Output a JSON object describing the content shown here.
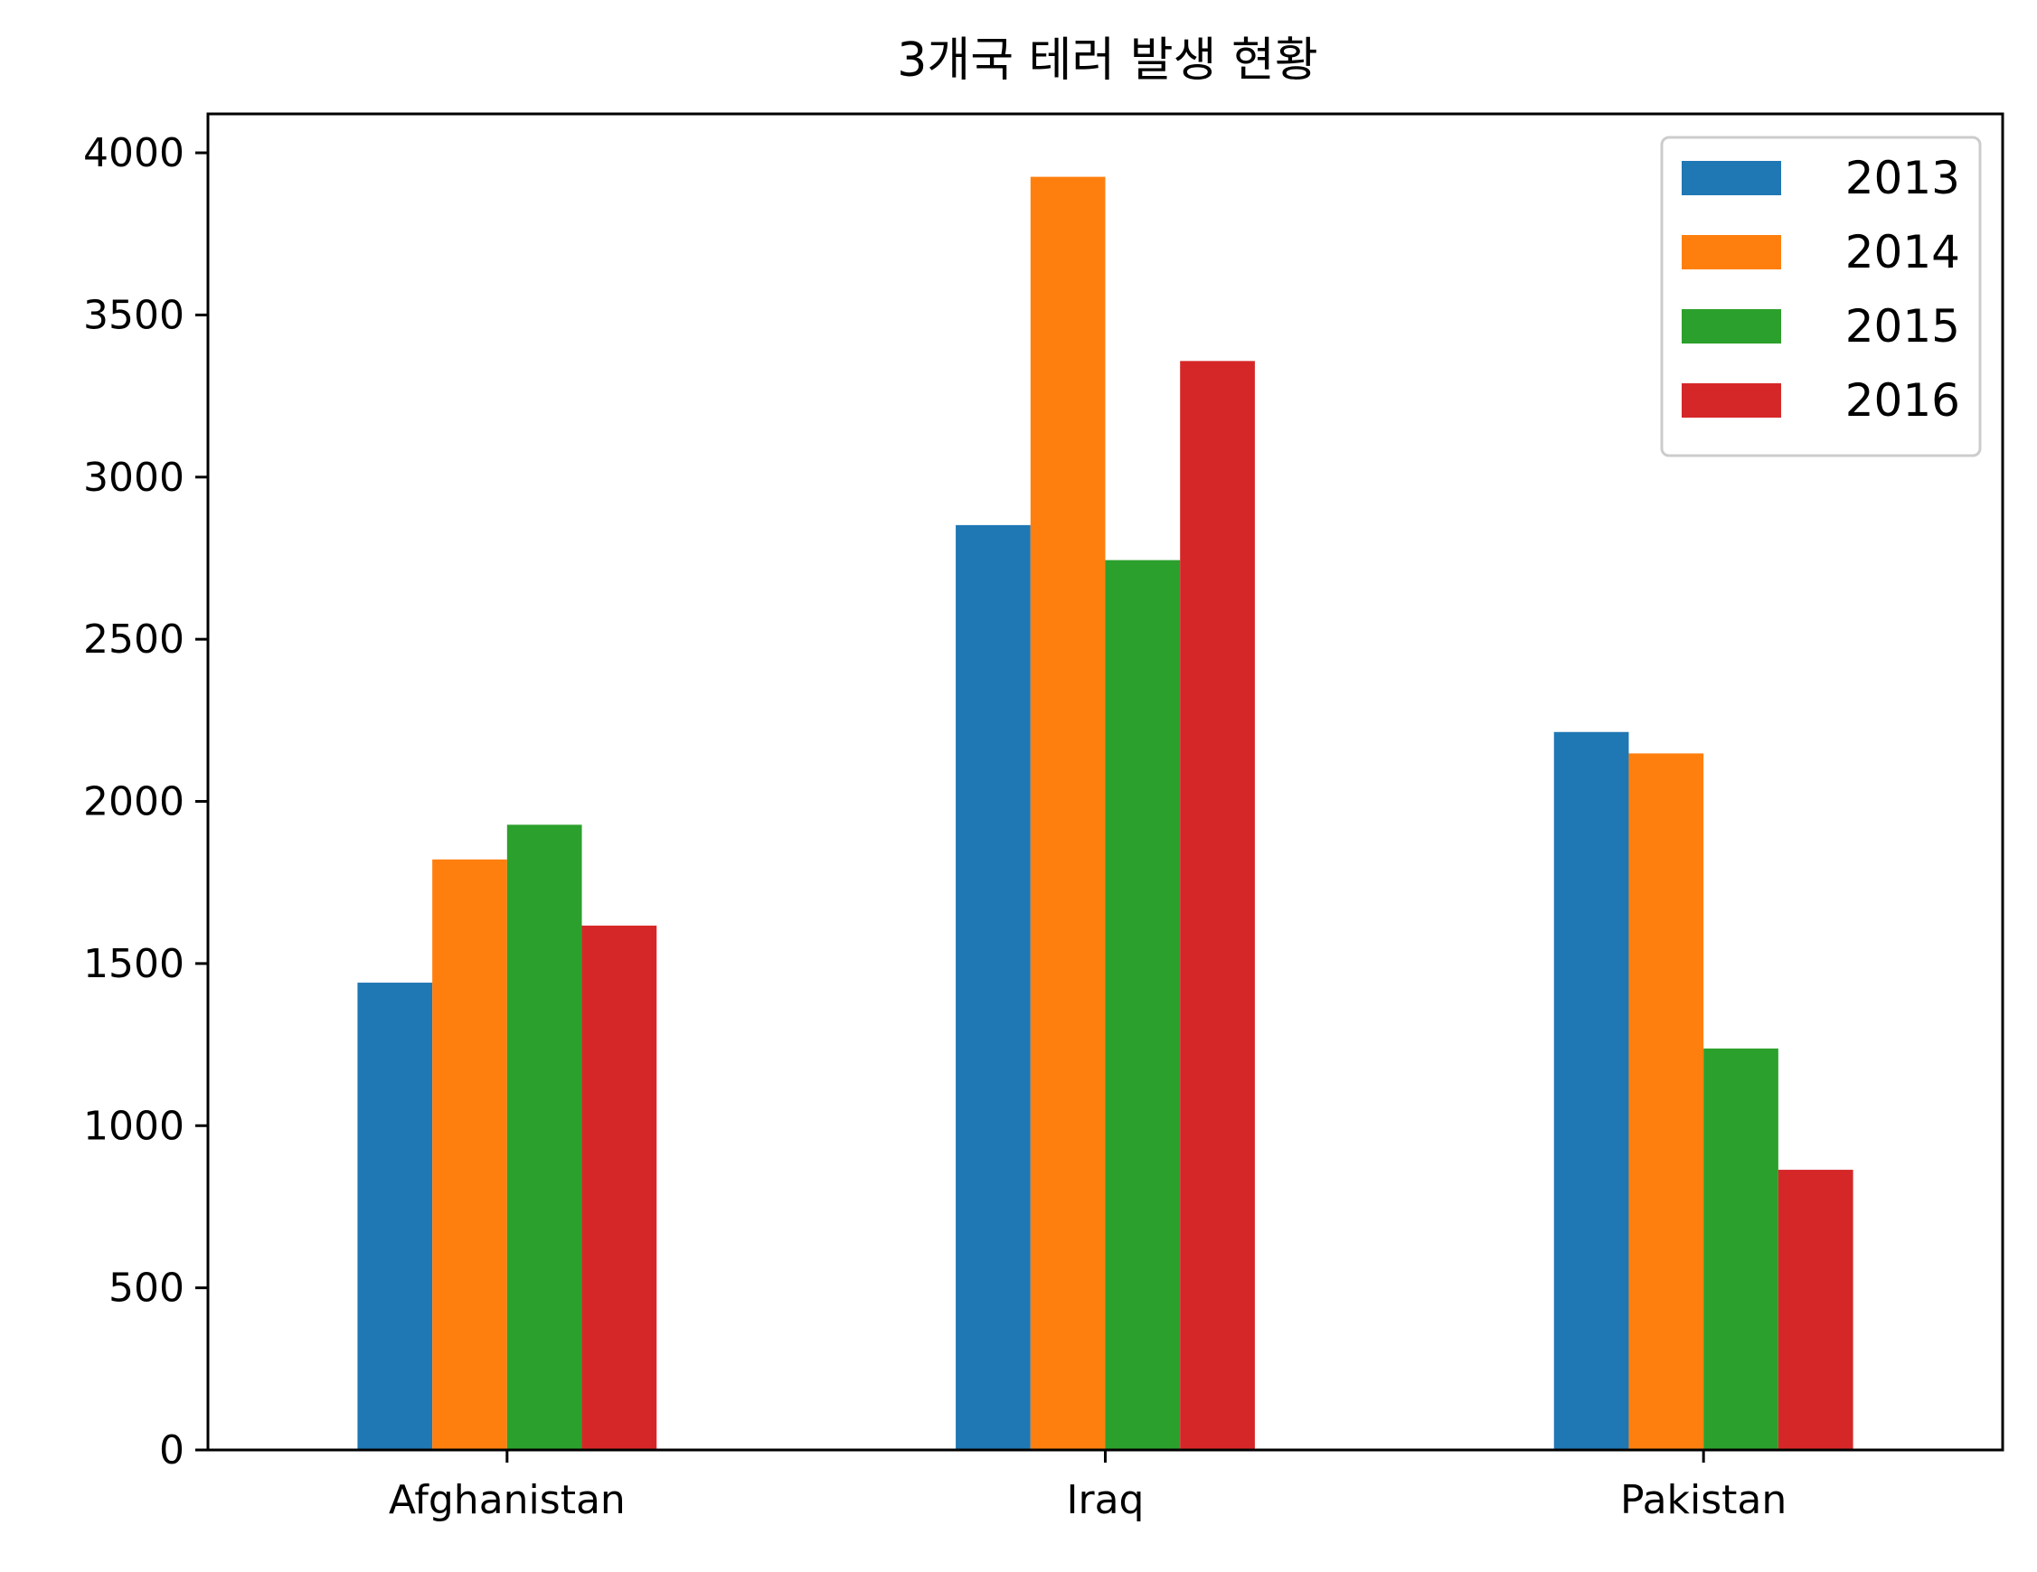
{
  "chart_data": {
    "type": "bar",
    "title": "3개국 테러 발생 현황",
    "xlabel": "",
    "ylabel": "",
    "categories": [
      "Afghanistan",
      "Iraq",
      "Pakistan"
    ],
    "series": [
      {
        "name": "2013",
        "values": [
          1441,
          2852,
          2214
        ],
        "color": "#1f77b4"
      },
      {
        "name": "2014",
        "values": [
          1821,
          3926,
          2148
        ],
        "color": "#ff7f0e"
      },
      {
        "name": "2015",
        "values": [
          1928,
          2744,
          1238
        ],
        "color": "#2ca02c"
      },
      {
        "name": "2016",
        "values": [
          1617,
          3358,
          864
        ],
        "color": "#d62728"
      }
    ],
    "ylim": [
      0,
      4120
    ],
    "yticks": [
      0,
      500,
      1000,
      1500,
      2000,
      2500,
      3000,
      3500,
      4000
    ],
    "yticklabels": [
      "0",
      "500",
      "1000",
      "1500",
      "2000",
      "2500",
      "3000",
      "3500",
      "4000"
    ],
    "legend": "top-right",
    "grid": false
  }
}
